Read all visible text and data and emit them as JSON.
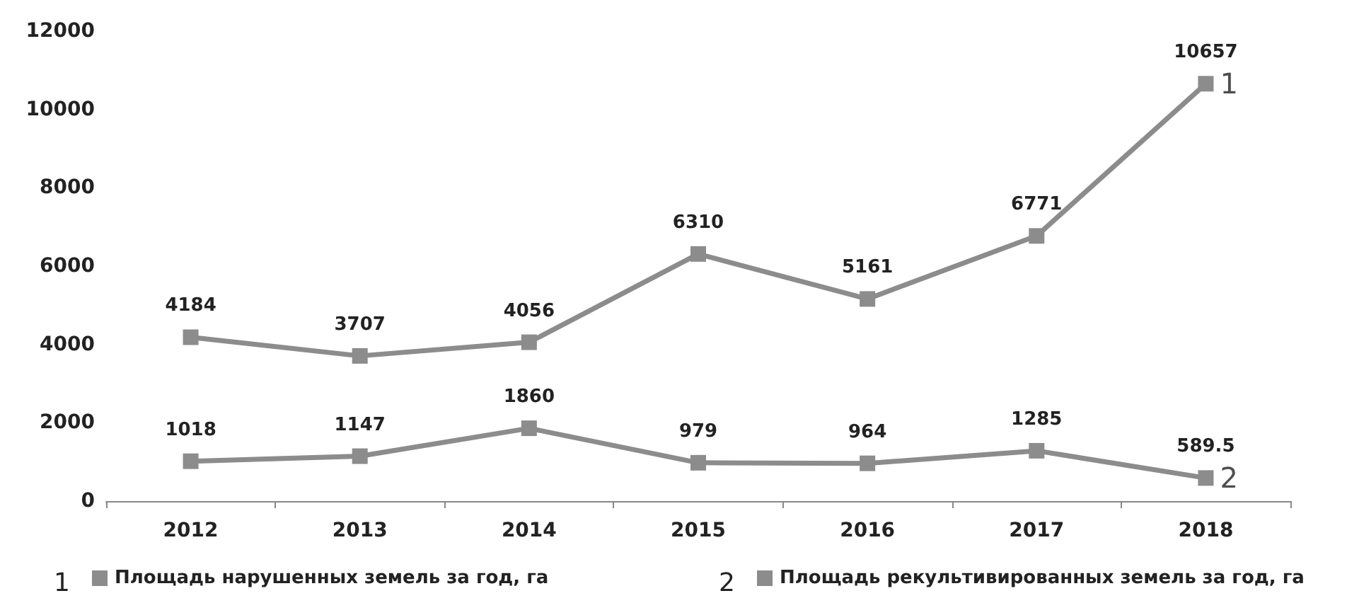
{
  "chart_data": {
    "type": "line",
    "categories": [
      "2012",
      "2013",
      "2014",
      "2015",
      "2016",
      "2017",
      "2018"
    ],
    "series": [
      {
        "name": "Площадь нарушенных земель за год, га",
        "color": "#8c8c8c",
        "values": [
          4184,
          3707,
          4056,
          6310,
          5161,
          6771,
          10657
        ]
      },
      {
        "name": "Площадь рекультивированных земель за год, га",
        "color": "#8c8c8c",
        "values": [
          1018,
          1147,
          1860,
          979,
          964,
          1285,
          589.5
        ]
      }
    ],
    "ylim": [
      0,
      12000
    ],
    "yticks": [
      0,
      2000,
      4000,
      6000,
      8000,
      10000,
      12000
    ],
    "data_labels": true,
    "marker": "square",
    "line_style": "solid",
    "grid": false,
    "legend": "bottom",
    "annotations": [
      {
        "text": "1",
        "x": "2018",
        "y": 10657
      },
      {
        "text": "2",
        "x": "2018",
        "y": 589.5
      },
      "1",
      "2"
    ]
  }
}
